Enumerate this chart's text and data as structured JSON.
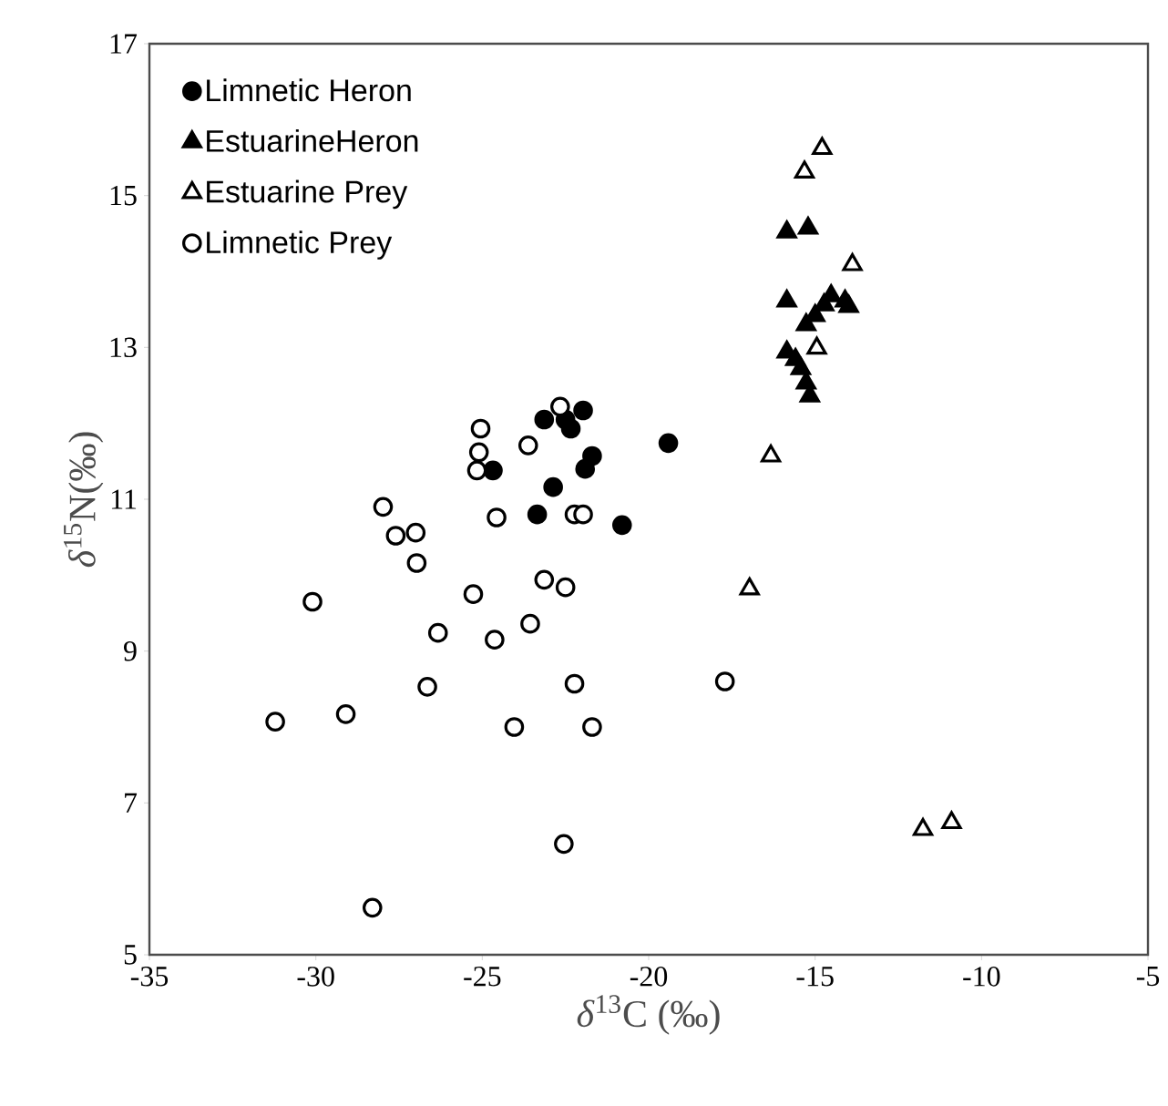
{
  "chart_data": {
    "type": "scatter",
    "xlabel": "*δ*$^{13}$C (‰)",
    "ylabel": "*δ*$^{15}$N(‰)",
    "xlim": [
      -35,
      -5
    ],
    "ylim": [
      5,
      17
    ],
    "xticks": [
      -35,
      -30,
      -25,
      -20,
      -15,
      -10,
      -5
    ],
    "yticks": [
      5,
      7,
      9,
      11,
      13,
      15,
      17
    ],
    "legend": "top left",
    "series": [
      {
        "name": "Limnetic Heron",
        "color": "#000000",
        "marker": "circle",
        "x": [
          -23.14,
          -22.34,
          -21.97,
          -22.5,
          -19.41,
          -21.7,
          -21.91,
          -24.68,
          -22.87,
          -23.35,
          -20.8
        ],
        "values": [
          12.05,
          11.93,
          12.17,
          12.05,
          11.74,
          11.57,
          11.4,
          11.38,
          11.16,
          10.8,
          10.66
        ]
      },
      {
        "name": "EstuarineHeron",
        "color": "#000000",
        "marker": "triangle",
        "x": [
          -15.85,
          -15.21,
          -15.85,
          -14.52,
          -14.1,
          -14.73,
          -15.0,
          -15.27,
          -13.99,
          -15.85,
          -15.59,
          -15.27,
          -15.16,
          -15.43
        ],
        "values": [
          14.52,
          14.57,
          13.61,
          13.68,
          13.61,
          13.56,
          13.42,
          13.3,
          13.54,
          12.94,
          12.84,
          12.53,
          12.36,
          12.72
        ]
      },
      {
        "name": "Estuarine Prey",
        "color": "#ffffff",
        "marker": "triangle",
        "x": [
          -14.79,
          -15.32,
          -13.88,
          -14.95,
          -16.33,
          -16.97,
          -11.76,
          -10.9
        ],
        "values": [
          15.62,
          15.31,
          14.09,
          12.99,
          11.57,
          9.82,
          6.65,
          6.74
        ]
      },
      {
        "name": "Limnetic Prey",
        "color": "#ffffff",
        "marker": "circle",
        "x": [
          -22.66,
          -25.05,
          -23.62,
          -25.1,
          -25.16,
          -27.98,
          -27.6,
          -27.0,
          -24.57,
          -22.23,
          -21.97,
          -26.97,
          -30.1,
          -25.27,
          -23.14,
          -22.5,
          -26.33,
          -24.63,
          -23.56,
          -26.65,
          -22.23,
          -31.22,
          -29.1,
          -24.04,
          -21.7,
          -22.55,
          -28.3,
          -17.71
        ],
        "values": [
          12.22,
          11.93,
          11.71,
          11.62,
          11.38,
          10.9,
          10.52,
          10.56,
          10.76,
          10.8,
          10.8,
          10.16,
          9.65,
          9.75,
          9.94,
          9.84,
          9.24,
          9.15,
          9.36,
          8.53,
          8.57,
          8.07,
          8.17,
          8.0,
          8.0,
          6.46,
          5.62,
          8.6
        ]
      }
    ]
  }
}
